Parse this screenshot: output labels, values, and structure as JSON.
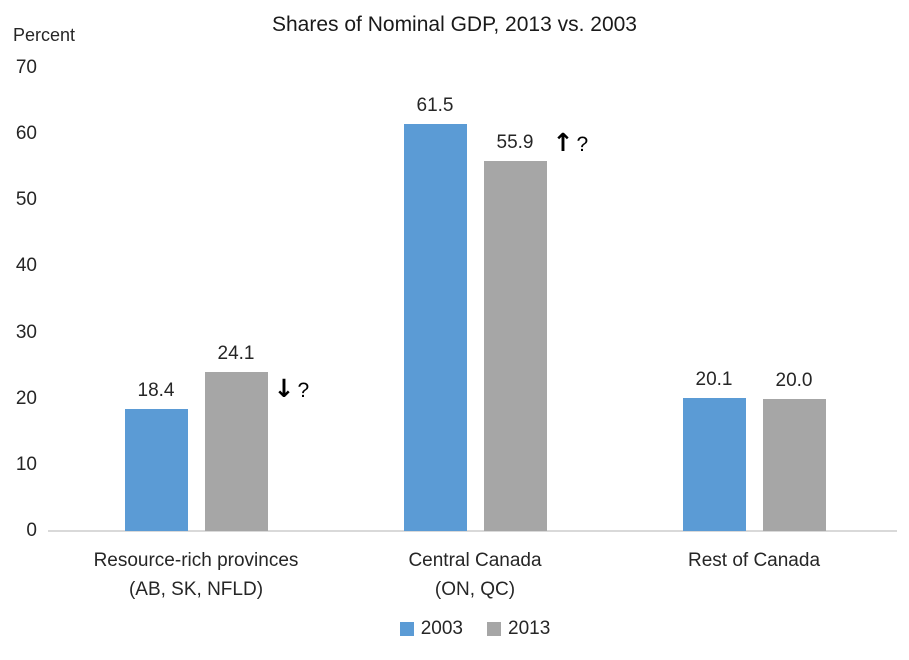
{
  "title": "Shares of Nominal GDP, 2013 vs. 2003",
  "axis_unit_label": "Percent",
  "chart_data": {
    "type": "bar",
    "title": "Shares of Nominal GDP, 2013 vs. 2003",
    "ylabel": "Percent",
    "ylim": [
      0,
      70
    ],
    "yticks": [
      70,
      60,
      50,
      40,
      30,
      20,
      10,
      0
    ],
    "grid": false,
    "legend_position": "bottom",
    "categories": [
      "Resource-rich provinces (AB, SK, NFLD)",
      "Central Canada (ON, QC)",
      "Rest of Canada"
    ],
    "category_label_lines": [
      [
        "Resource-rich provinces",
        "(AB, SK, NFLD)"
      ],
      [
        "Central Canada",
        "(ON, QC)"
      ],
      [
        "Rest of Canada"
      ]
    ],
    "series": [
      {
        "name": "2003",
        "color": "#5B9BD5",
        "values": [
          18.4,
          61.5,
          20.1
        ],
        "labels": [
          "18.4",
          "61.5",
          "20.1"
        ]
      },
      {
        "name": "2013",
        "color": "#A6A6A6",
        "values": [
          24.1,
          55.9,
          20.0
        ],
        "labels": [
          "24.1",
          "55.9",
          "20.0"
        ]
      }
    ],
    "annotations": [
      {
        "category_index": 0,
        "direction": "down",
        "arrow": "↓",
        "question": "?"
      },
      {
        "category_index": 1,
        "direction": "up",
        "arrow": "↑",
        "question": "?"
      }
    ],
    "colors": {
      "axis_line": "#D9D9D9",
      "text": "#262626"
    }
  }
}
